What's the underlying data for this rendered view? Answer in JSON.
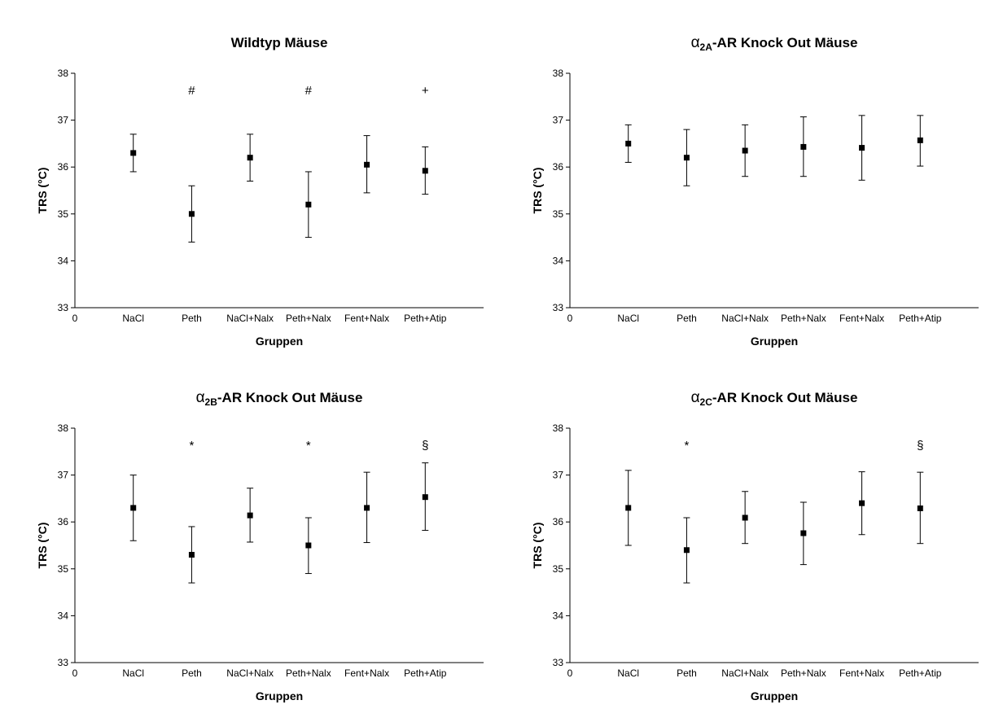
{
  "chart_data": [
    {
      "type": "scatter",
      "title": {
        "prefix": "",
        "sub": "",
        "suffix": "Wildtyp Mäuse"
      },
      "xlabel": "Gruppen",
      "ylabel": "TRS (°C)",
      "ylim": [
        33,
        38
      ],
      "y_ticks": [
        "33",
        "34",
        "35",
        "36",
        "37",
        "38"
      ],
      "x_origin_label": "0",
      "categories": [
        "NaCl",
        "Peth",
        "NaCl+Nalx",
        "Peth+Nalx",
        "Fent+Nalx",
        "Peth+Atip"
      ],
      "values": [
        36.3,
        35.0,
        36.2,
        35.2,
        36.05,
        35.92
      ],
      "err_low": [
        35.9,
        34.4,
        35.7,
        34.5,
        35.45,
        35.42
      ],
      "err_high": [
        36.7,
        35.6,
        36.7,
        35.9,
        36.67,
        36.43
      ],
      "annotations": [
        "",
        "#",
        "",
        "#",
        "",
        "+"
      ]
    },
    {
      "type": "scatter",
      "title": {
        "prefix": "α",
        "sub": "2A",
        "suffix": "-AR Knock Out Mäuse"
      },
      "xlabel": "Gruppen",
      "ylabel": "TRS (°C)",
      "ylim": [
        33,
        38
      ],
      "y_ticks": [
        "33",
        "34",
        "35",
        "36",
        "37",
        "38"
      ],
      "x_origin_label": "0",
      "categories": [
        "NaCl",
        "Peth",
        "NaCl+Nalx",
        "Peth+Nalx",
        "Fent+Nalx",
        "Peth+Atip"
      ],
      "values": [
        36.5,
        36.2,
        36.35,
        36.43,
        36.41,
        36.57
      ],
      "err_low": [
        36.1,
        35.6,
        35.8,
        35.8,
        35.72,
        36.02
      ],
      "err_high": [
        36.9,
        36.8,
        36.9,
        37.07,
        37.1,
        37.1
      ],
      "annotations": [
        "",
        "",
        "",
        "",
        "",
        ""
      ]
    },
    {
      "type": "scatter",
      "title": {
        "prefix": "α",
        "sub": "2B",
        "suffix": "-AR Knock Out Mäuse"
      },
      "xlabel": "Gruppen",
      "ylabel": "TRS (°C)",
      "ylim": [
        33,
        38
      ],
      "y_ticks": [
        "33",
        "34",
        "35",
        "36",
        "37",
        "38"
      ],
      "x_origin_label": "0",
      "categories": [
        "NaCl",
        "Peth",
        "NaCl+Nalx",
        "Peth+Nalx",
        "Fent+Nalx",
        "Peth+Atip"
      ],
      "values": [
        36.3,
        35.3,
        36.14,
        35.5,
        36.3,
        36.53
      ],
      "err_low": [
        35.6,
        34.7,
        35.57,
        34.9,
        35.56,
        35.82
      ],
      "err_high": [
        37.0,
        35.9,
        36.72,
        36.09,
        37.06,
        37.26
      ],
      "annotations": [
        "",
        "*",
        "",
        "*",
        "",
        "§"
      ]
    },
    {
      "type": "scatter",
      "title": {
        "prefix": "α",
        "sub": "2C",
        "suffix": "-AR Knock Out Mäuse"
      },
      "xlabel": "Gruppen",
      "ylabel": "TRS (°C)",
      "ylim": [
        33,
        38
      ],
      "y_ticks": [
        "33",
        "34",
        "35",
        "36",
        "37",
        "38"
      ],
      "x_origin_label": "0",
      "categories": [
        "NaCl",
        "Peth",
        "NaCl+Nalx",
        "Peth+Nalx",
        "Fent+Nalx",
        "Peth+Atip"
      ],
      "values": [
        36.3,
        35.4,
        36.09,
        35.76,
        36.4,
        36.29
      ],
      "err_low": [
        35.5,
        34.7,
        35.54,
        35.09,
        35.73,
        35.54
      ],
      "err_high": [
        37.1,
        36.09,
        36.65,
        36.42,
        37.07,
        37.06
      ],
      "annotations": [
        "",
        "*",
        "",
        "",
        "",
        "§"
      ]
    }
  ]
}
